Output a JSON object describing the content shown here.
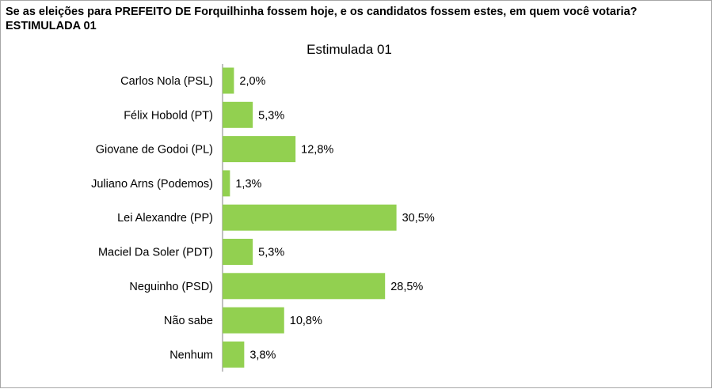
{
  "question": "Se as eleições para PREFEITO DE Forquilhinha fossem hoje, e os candidatos fossem estes, em quem você votaria? ESTIMULADA 01",
  "chart_data": {
    "type": "bar",
    "orientation": "horizontal",
    "title": "Estimulada 01",
    "categories": [
      "Carlos Nola (PSL)",
      "Félix Hobold (PT)",
      "Giovane de Godoi (PL)",
      "Juliano Arns (Podemos)",
      "Lei Alexandre (PP)",
      "Maciel Da Soler (PDT)",
      "Neguinho (PSD)",
      "Não sabe",
      "Nenhum"
    ],
    "values": [
      2.0,
      5.3,
      12.8,
      1.3,
      30.5,
      5.3,
      28.5,
      10.8,
      3.8
    ],
    "value_labels": [
      "2,0%",
      "5,3%",
      "12,8%",
      "1,3%",
      "30,5%",
      "5,3%",
      "28,5%",
      "10,8%",
      "3,8%"
    ],
    "xlim": [
      0,
      100
    ],
    "grid": false,
    "bar_color": "#92d050"
  }
}
